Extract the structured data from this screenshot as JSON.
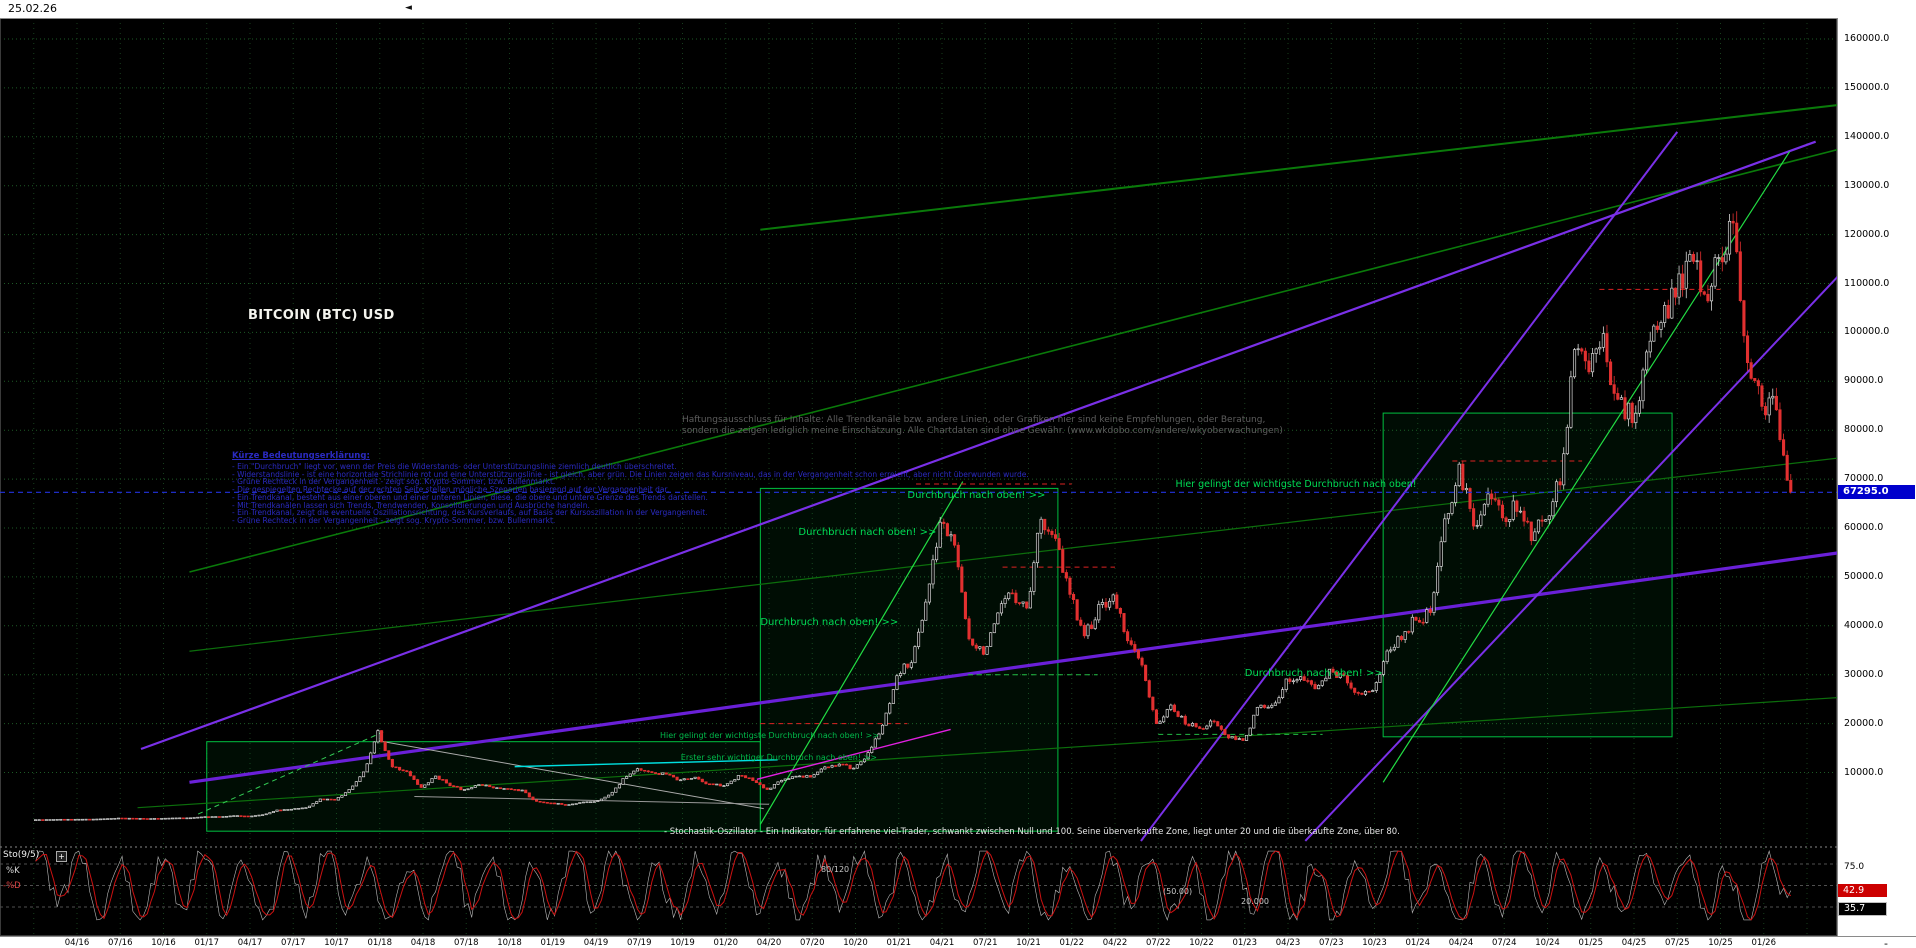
{
  "window": {
    "date_label": "25.02.26",
    "minus_label": "-",
    "marker_icon": "◄"
  },
  "chart": {
    "title": "BITCOIN (BTC) USD",
    "current_price": 67295,
    "price_badge": "67295.0"
  },
  "legend": {
    "title": "Kürze Bedeutungserklärung:",
    "lines": [
      "- Ein \"Durchbruch\" liegt vor, wenn der Preis die Widerstands- oder Unterstützungslinie ziemlich deutlich überschreitet.",
      "- Widerstandslinie - ist eine horizontale Strichlinie rot und eine Unterstützungslinie - ist gleich, aber grün. Die Linien zeigen das Kursniveau, das in der Vergangenheit schon erreicht, aber nicht überwunden wurde.",
      "- Grüne Rechteck in der Vergangenheit - zeigt sog. Krypto-Sommer, bzw. Bullenmarkt.",
      "- Die gespiegelten Rechtecke auf der rechten Seite stellen mögliche Szenarien basierend auf der Vergangenheit dar.",
      "- Ein Trendkanal, besteht aus einer oberen und einer unteren Linien, diese, die obere und untere Grenze des Trends darstellen.",
      "- Mit Trendkanälen lassen sich Trends, Trendwenden, Konsolidierungen und Ausbrüche handeln.",
      "- Ein Trendkanal, zeigt die eventuelle Oszillationsrichtung, des Kursverlaufs, auf Basis der Kursoszillation in der Vergangenheit.",
      "- Grüne Rechteck in der Vergangenheit - zeigt sog. Krypto-Sommer, bzw. Bullenmarkt."
    ]
  },
  "disclaimer": {
    "line1": "Haftungsausschluss für Inhalte: Alle Trendkanäle bzw. andere Linien, oder Grafiken hier sind keine Empfehlungen, oder Beratung,",
    "line2": "sondern die zeigen lediglich meine Einschätzung. Alle Chartdaten sind ohne Gewähr. (www.wkdobo.com/andere/wkyoberwachungen)"
  },
  "annotations": [
    {
      "text": "Durchbruch nach oben! >>",
      "t": 2021.05,
      "price": 66500,
      "size": 10,
      "color": "#00dd55"
    },
    {
      "text": "Durchbruch nach oben! >>",
      "t": 2020.42,
      "price": 59000,
      "size": 10,
      "color": "#00dd55"
    },
    {
      "text": "Durchbruch nach oben! >>",
      "t": 2020.2,
      "price": 40500,
      "size": 10,
      "color": "#00dd55"
    },
    {
      "text": "Durchbruch nach oben! >>",
      "t": 2023.0,
      "price": 30100,
      "size": 10,
      "color": "#00dd55"
    },
    {
      "text": "Hier gelingt der wichtigste Durchbruch nach oben!",
      "t": 2022.6,
      "price": 68800,
      "size": 9.5,
      "color": "#00dd55"
    },
    {
      "text": "Hier gelingt der wichtigste Durchbruch nach oben! >>",
      "t": 2019.62,
      "price": 17200,
      "size": 8,
      "color": "#00b94a"
    },
    {
      "text": "Erster sehr wichtiger Durchbruch nach oben! >>",
      "t": 2019.74,
      "price": 12800,
      "size": 8,
      "color": "#00b94a"
    }
  ],
  "overlays": {
    "lines": [
      {
        "name": "upper-green-channel",
        "color": "#0a7a0a",
        "w": 2,
        "p1": [
          2020.2,
          121000
        ],
        "p2": [
          2026.55,
          147000
        ]
      },
      {
        "name": "mid-green-channel",
        "color": "#0a7a0a",
        "w": 1.6,
        "p1": [
          2016.9,
          51000
        ],
        "p2": [
          2026.55,
          138500
        ]
      },
      {
        "name": "inner-green-trend",
        "color": "#0c6e0c",
        "w": 1.2,
        "p1": [
          2016.9,
          34800
        ],
        "p2": [
          2026.55,
          74800
        ]
      },
      {
        "name": "lower-green-support",
        "color": "#0c6e0c",
        "w": 1.2,
        "p1": [
          2016.6,
          2800
        ],
        "p2": [
          2026.55,
          25600
        ]
      },
      {
        "name": "long-violet-trend",
        "color": "#7a30e8",
        "w": 2.2,
        "p1": [
          2016.62,
          14800
        ],
        "p2": [
          2026.3,
          139000
        ]
      },
      {
        "name": "thick-violet-support",
        "color": "#6a20d8",
        "w": 3.2,
        "p1": [
          2016.9,
          8000
        ],
        "p2": [
          2026.55,
          55500
        ]
      },
      {
        "name": "steep-violet-1",
        "color": "#7a30e8",
        "w": 2,
        "p1": [
          2022.4,
          -4000
        ],
        "p2": [
          2025.5,
          141000
        ]
      },
      {
        "name": "steep-violet-2",
        "color": "#7a30e8",
        "w": 2,
        "p1": [
          2023.35,
          -4000
        ],
        "p2": [
          2026.55,
          116000
        ]
      },
      {
        "name": "steep-bright-green-right",
        "color": "#22dd44",
        "w": 1.2,
        "p1": [
          2023.8,
          8000
        ],
        "p2": [
          2026.15,
          137000
        ]
      },
      {
        "name": "steep-bright-green-2020",
        "color": "#22dd44",
        "w": 1.2,
        "p1": [
          2020.2,
          -600
        ],
        "p2": [
          2021.37,
          69500
        ]
      },
      {
        "name": "rally-2017-trendline",
        "color": "#33cc55",
        "w": 1,
        "dash": "5,4",
        "p1": [
          2016.95,
          1500
        ],
        "p2": [
          2018.02,
          18300
        ]
      },
      {
        "name": "downtrend-2018",
        "color": "#aaaaaa",
        "w": 1,
        "p1": [
          2017.99,
          16500
        ],
        "p2": [
          2020.22,
          2600
        ]
      },
      {
        "name": "base-2018-2020",
        "color": "#999999",
        "w": 1,
        "p1": [
          2018.2,
          5100
        ],
        "p2": [
          2020.25,
          3500
        ]
      },
      {
        "name": "cyan-resistance-2019",
        "color": "#00e0e0",
        "w": 1.4,
        "p1": [
          2018.78,
          11200
        ],
        "p2": [
          2020.3,
          12600
        ]
      },
      {
        "name": "magenta-support",
        "color": "#e020e0",
        "w": 1.4,
        "p1": [
          2020.18,
          8600
        ],
        "p2": [
          2021.3,
          18800
        ]
      },
      {
        "name": "red-resistance-69k",
        "color": "#dd2222",
        "w": 1,
        "dash": "5,4",
        "p1": [
          2021.1,
          69000
        ],
        "p2": [
          2022.0,
          69000
        ]
      },
      {
        "name": "red-resistance-20k",
        "color": "#dd2222",
        "w": 1,
        "dash": "5,4",
        "p1": [
          2020.2,
          20000
        ],
        "p2": [
          2021.05,
          20000
        ]
      },
      {
        "name": "red-resistance-52k",
        "color": "#dd2222",
        "w": 1,
        "dash": "5,4",
        "p1": [
          2021.6,
          52000
        ],
        "p2": [
          2022.25,
          52000
        ]
      },
      {
        "name": "red-resistance-73k",
        "color": "#dd2222",
        "w": 1,
        "dash": "5,4",
        "p1": [
          2024.2,
          73700
        ],
        "p2": [
          2024.95,
          73700
        ]
      },
      {
        "name": "red-resistance-109k",
        "color": "#dd2222",
        "w": 1,
        "dash": "5,4",
        "p1": [
          2025.05,
          108800
        ],
        "p2": [
          2025.75,
          108800
        ]
      },
      {
        "name": "green-support-30k",
        "color": "#22bb44",
        "w": 1,
        "dash": "5,4",
        "p1": [
          2021.4,
          30000
        ],
        "p2": [
          2022.15,
          30000
        ]
      },
      {
        "name": "green-support-18k",
        "color": "#22bb44",
        "w": 1,
        "dash": "5,4",
        "p1": [
          2022.5,
          17800
        ],
        "p2": [
          2023.45,
          17800
        ]
      }
    ],
    "rects": [
      {
        "name": "crypto-summer-2017",
        "t1": 2017.0,
        "t2": 2020.2,
        "p_low": -2000,
        "p_high": 16300
      },
      {
        "name": "crypto-summer-2020-21",
        "t1": 2020.2,
        "t2": 2021.92,
        "p_low": -2000,
        "p_high": 68100
      },
      {
        "name": "crypto-summer-2023-25",
        "t1": 2023.8,
        "t2": 2025.47,
        "p_low": 17300,
        "p_high": 83500
      }
    ]
  },
  "stochastic": {
    "label": "Sto(9/5)",
    "plus_label": "+",
    "k_label": "%K",
    "d_label": "-%D",
    "axis_75": "75.0",
    "k_value": "42.9",
    "d_value": "35.7",
    "level_80": "80/120",
    "level_50": "(50.00)",
    "level_20": "20.000",
    "description": "- Stochastik-Oszillator - Ein Indikator, für erfahrene viel-Trader, schwankt zwischen Null und 100. Seine überverkaufte Zone, liegt unter 20 und die überkaufte Zone, über 80."
  },
  "chart_data": {
    "type": "candlestick",
    "symbol": "BITCOIN (BTC) USD",
    "currency": "USD",
    "interval": "monthly closes (chart rendered as weekly sub-candles)",
    "x_start": "2016-01",
    "x_end": "2026-02",
    "monthly_close_usd": [
      370,
      435,
      415,
      450,
      530,
      670,
      620,
      575,
      610,
      700,
      745,
      965,
      970,
      1180,
      1080,
      1350,
      2300,
      2480,
      2875,
      4700,
      4340,
      6450,
      10000,
      18500,
      11000,
      10300,
      6930,
      9240,
      7500,
      6400,
      7750,
      7030,
      6600,
      6300,
      4020,
      3740,
      3460,
      3850,
      4100,
      5320,
      8560,
      10800,
      10100,
      9600,
      8300,
      9150,
      7550,
      7200,
      9350,
      8550,
      6440,
      8630,
      9450,
      9140,
      11350,
      11650,
      10780,
      13800,
      19700,
      29000,
      33100,
      45200,
      61300,
      57000,
      37300,
      35000,
      41500,
      47100,
      43800,
      63500,
      56900,
      46200,
      38500,
      43200,
      45500,
      37700,
      31800,
      19900,
      23300,
      20050,
      19400,
      20500,
      17100,
      16550,
      23100,
      23150,
      28500,
      29250,
      27200,
      30480,
      29230,
      25940,
      26970,
      34650,
      37700,
      42270,
      42580,
      61200,
      71280,
      60640,
      67500,
      62680,
      64620,
      58970,
      63330,
      70220,
      96450,
      93430,
      102400,
      84350,
      82550,
      94210,
      104600,
      107600,
      115800,
      108240,
      114060,
      122000,
      91500,
      87000,
      85000,
      67295
    ],
    "last_price": 67295.0,
    "y_axis": {
      "unit": "USD",
      "min": 0,
      "max": 165000,
      "ticks": [
        160000,
        150000,
        140000,
        130000,
        120000,
        110000,
        100000,
        90000,
        80000,
        70000,
        60000,
        50000,
        40000,
        30000,
        20000,
        10000
      ],
      "tick_labels": [
        "160000.0",
        "150000.0",
        "140000.0",
        "130000.0",
        "120000.0",
        "110000.0",
        "100000.0",
        "90000.0",
        "80000.0",
        "70000.0",
        "60000.0",
        "50000.0",
        "40000.0",
        "30000.0",
        "20000.0",
        "10000.0"
      ]
    },
    "x_axis": {
      "tick_labels": [
        "04/16",
        "07/16",
        "10/16",
        "01/17",
        "04/17",
        "07/17",
        "10/17",
        "01/18",
        "04/18",
        "07/18",
        "10/18",
        "01/19",
        "04/19",
        "07/19",
        "10/19",
        "01/20",
        "04/20",
        "07/20",
        "10/20",
        "01/21",
        "04/21",
        "07/21",
        "10/21",
        "01/22",
        "04/22",
        "07/22",
        "10/22",
        "01/23",
        "04/23",
        "07/23",
        "10/23",
        "01/24",
        "04/24",
        "07/24",
        "10/24",
        "01/25",
        "04/25",
        "07/25",
        "10/25",
        "01/26"
      ]
    },
    "indicator": {
      "name": "Stochastik-Oszillator Sto(9/5)",
      "k": 42.9,
      "d": 35.7,
      "levels": [
        80,
        50,
        20
      ],
      "range": [
        0,
        100
      ]
    }
  }
}
